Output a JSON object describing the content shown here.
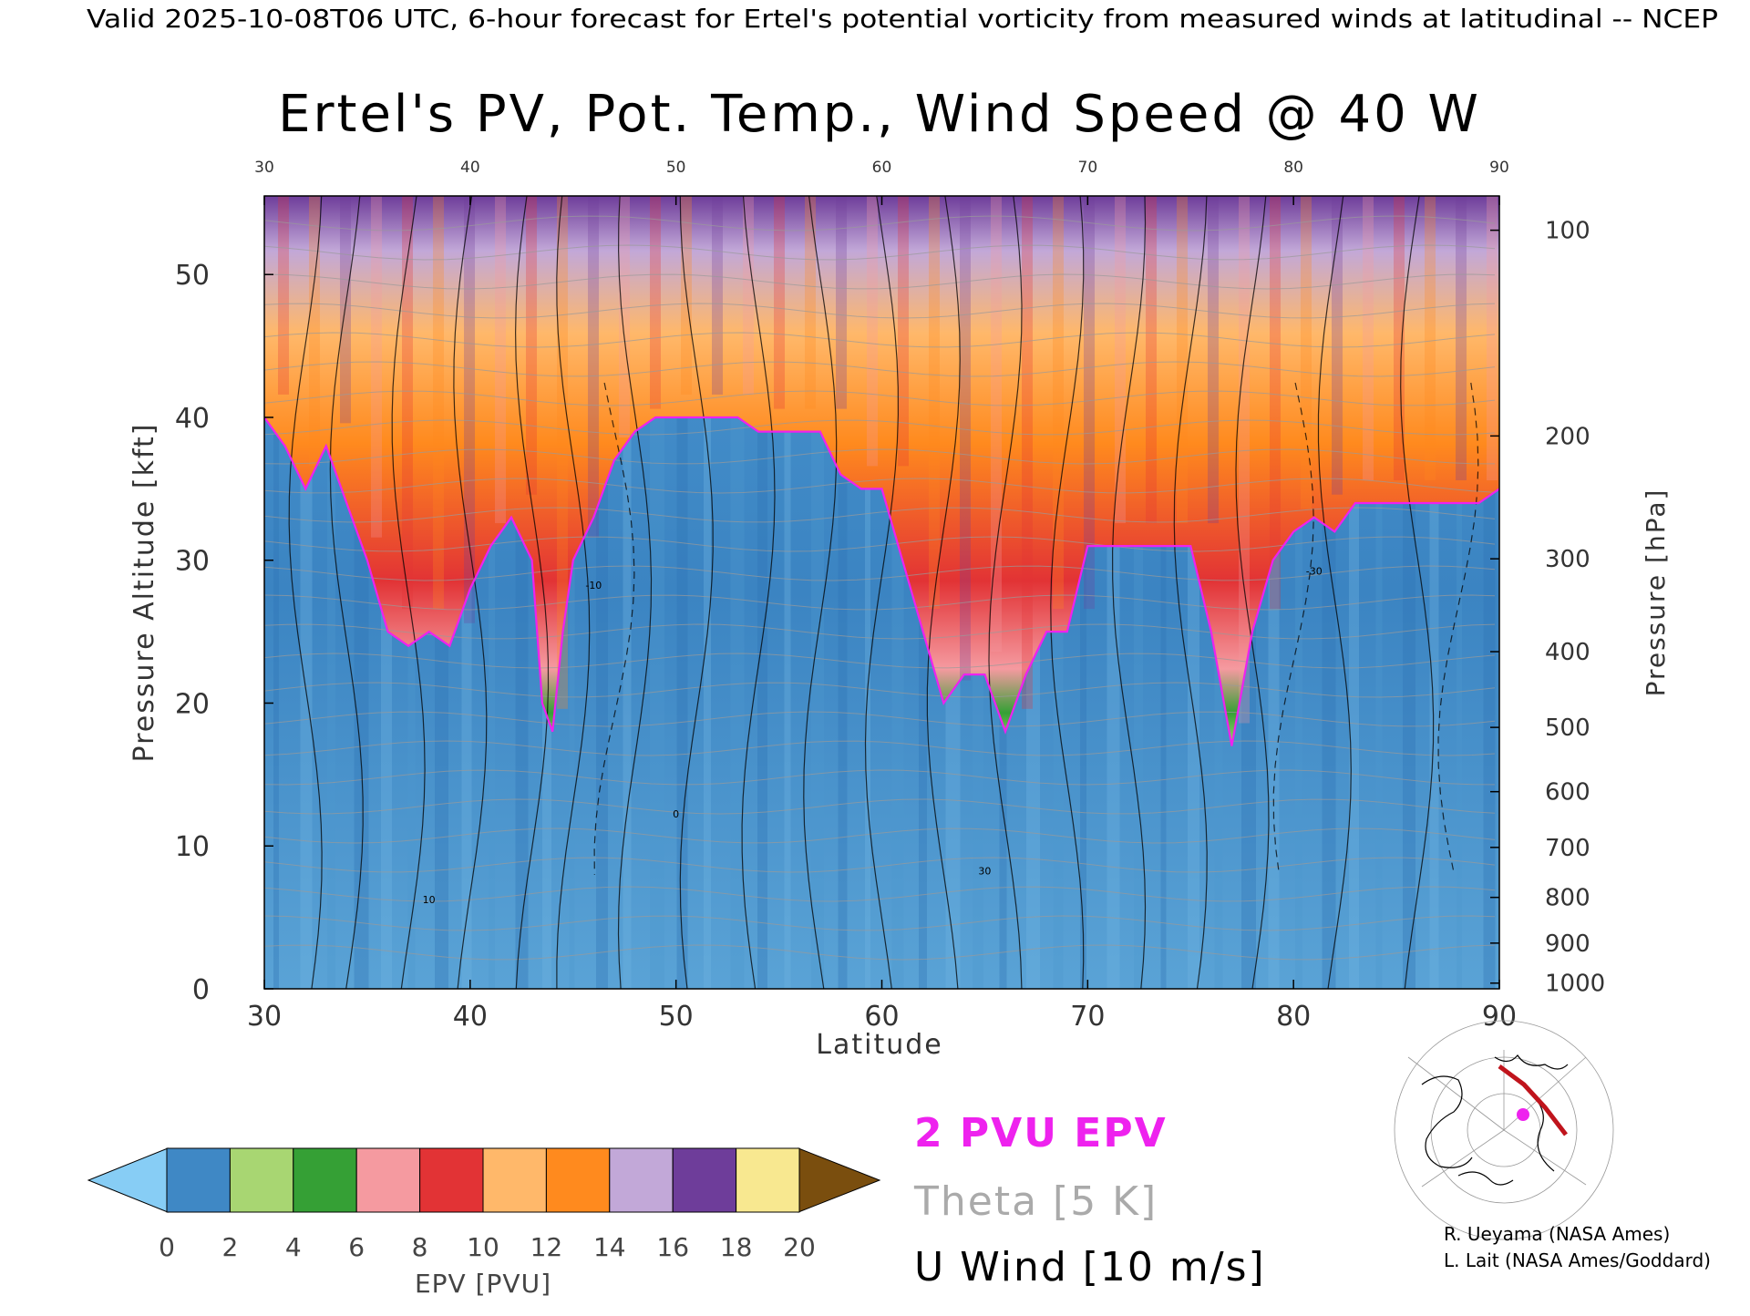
{
  "header": {
    "valid_line": "Valid 2025-10-08T06 UTC, 6-hour forecast for Ertel's potential vorticity from measured winds at latitudinal -- NCEP"
  },
  "chart_data": {
    "type": "heatmap",
    "title": "Ertel's PV, Pot. Temp., Wind Speed @ 40 W",
    "xlabel": "Latitude",
    "ylabel_left": "Pressure Altitude [kft]",
    "ylabel_right": "Pressure [hPa]",
    "xlim": [
      30,
      90
    ],
    "ylim_kft": [
      0,
      55.5
    ],
    "x_ticks": [
      "30",
      "40",
      "50",
      "60",
      "70",
      "80",
      "90"
    ],
    "x_tick_values": [
      30,
      40,
      50,
      60,
      70,
      80,
      90
    ],
    "y_ticks_left": [
      "0",
      "10",
      "20",
      "30",
      "40",
      "50"
    ],
    "y_tick_values_left": [
      0,
      10,
      20,
      30,
      40,
      50
    ],
    "y_ticks_right": [
      "100",
      "200",
      "300",
      "400",
      "500",
      "600",
      "700",
      "800",
      "900",
      "1000"
    ],
    "y_tick_kft_right": [
      53.1,
      38.7,
      30.1,
      23.6,
      18.3,
      13.8,
      9.9,
      6.4,
      3.2,
      0.4
    ],
    "tropopause_2pvu_kft": {
      "lat": [
        30,
        31,
        32,
        33,
        34,
        35,
        36,
        37,
        38,
        39,
        40,
        41,
        42,
        43,
        43.5,
        44,
        44.5,
        45,
        46,
        47,
        48,
        49,
        50,
        51,
        52,
        53,
        54,
        55,
        56,
        57,
        58,
        59,
        60,
        61,
        62,
        63,
        64,
        65,
        66,
        67,
        68,
        69,
        70,
        71,
        72,
        73,
        74,
        75,
        76,
        77,
        78,
        79,
        80,
        81,
        82,
        83,
        84,
        85,
        86,
        87,
        88,
        89,
        90
      ],
      "kft": [
        40,
        38,
        35,
        38,
        34,
        30,
        25,
        24,
        25,
        24,
        28,
        31,
        33,
        30,
        20,
        18,
        25,
        30,
        33,
        37,
        39,
        40,
        40,
        40,
        40,
        40,
        39,
        39,
        39,
        39,
        36,
        35,
        35,
        30,
        25,
        20,
        22,
        22,
        18,
        22,
        25,
        25,
        31,
        31,
        31,
        31,
        31,
        31,
        25,
        17,
        25,
        30,
        32,
        33,
        32,
        34,
        34,
        34,
        34,
        34,
        34,
        34,
        35
      ]
    },
    "epv_colorbar": {
      "label": "EPV [PVU]",
      "ticks": [
        "0",
        "2",
        "4",
        "6",
        "8",
        "10",
        "12",
        "14",
        "16",
        "18",
        "20"
      ],
      "bins": [
        {
          "from": 0,
          "to": 2,
          "color": "#3f88c5"
        },
        {
          "from": 2,
          "to": 4,
          "color": "#a8d672"
        },
        {
          "from": 4,
          "to": 6,
          "color": "#35a035"
        },
        {
          "from": 6,
          "to": 8,
          "color": "#f59aa0"
        },
        {
          "from": 8,
          "to": 10,
          "color": "#e23335"
        },
        {
          "from": 10,
          "to": 12,
          "color": "#ffb86a"
        },
        {
          "from": 12,
          "to": 14,
          "color": "#ff8a1e"
        },
        {
          "from": 14,
          "to": 16,
          "color": "#c2a8d8"
        },
        {
          "from": 16,
          "to": 18,
          "color": "#6e3d9a"
        },
        {
          "from": 18,
          "to": 20,
          "color": "#f8e890"
        }
      ],
      "under_color": "#87cdf5",
      "over_color": "#7a4e0e"
    },
    "legend": [
      {
        "label": "2 PVU EPV",
        "color": "#ee22ee"
      },
      {
        "label": "Theta [5 K]",
        "color": "#aaaaaa"
      },
      {
        "label": "U Wind [10 m/s]",
        "color": "#000000"
      }
    ],
    "annotations": [
      "0",
      "10",
      "30",
      "-10",
      "-30"
    ]
  },
  "credits": {
    "line1": "R. Ueyama (NASA Ames)",
    "line2": "L. Lait (NASA Ames/Goddard)"
  },
  "colors": {
    "tropopause": "#ee22ee",
    "troposphere": "#3f88c5",
    "text": "#000000"
  }
}
